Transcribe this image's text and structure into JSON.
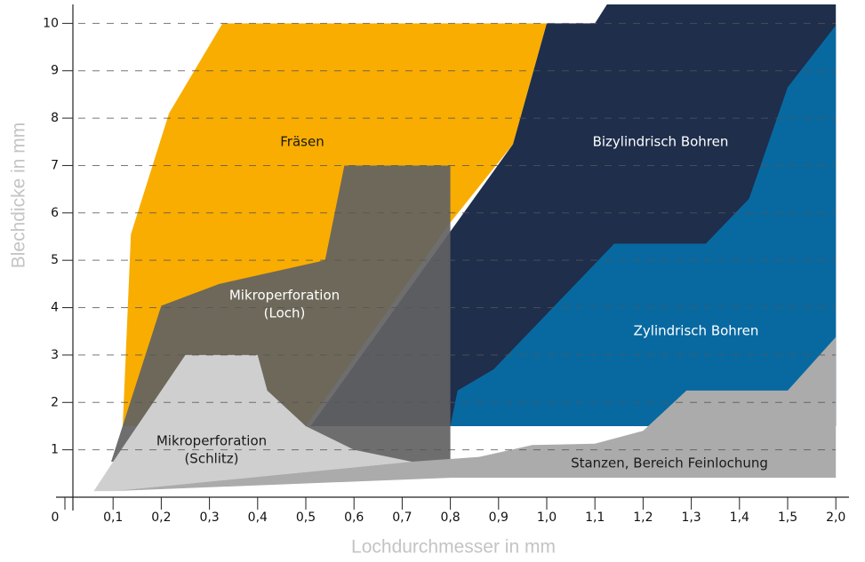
{
  "chart_data": {
    "type": "region",
    "x_label": "Lochdurchmesser in mm",
    "y_label": "Blechdicke in mm",
    "xlim": [
      0,
      2.0
    ],
    "ylim": [
      0,
      10.4
    ],
    "xticks": [
      0,
      {
        "value": 0.1,
        "label": "0,1"
      },
      {
        "value": 0.2,
        "label": "0,2"
      },
      {
        "value": 0.3,
        "label": "0,3"
      },
      {
        "value": 0.4,
        "label": "0,4"
      },
      {
        "value": 0.5,
        "label": "0,5"
      },
      {
        "value": 0.6,
        "label": "0,6"
      },
      {
        "value": 0.7,
        "label": "0,7"
      },
      {
        "value": 0.8,
        "label": "0,8"
      },
      {
        "value": 0.9,
        "label": "0,9"
      },
      {
        "value": 1.0,
        "label": "1,0"
      },
      {
        "value": 1.1,
        "label": "1,1"
      },
      {
        "value": 1.2,
        "label": "1,2"
      },
      {
        "value": 1.3,
        "label": "1,3"
      },
      {
        "value": 1.4,
        "label": "1,4"
      },
      {
        "value": 1.5,
        "label": "1,5"
      },
      {
        "value": 2.0,
        "label": "2,0"
      }
    ],
    "yticks": [
      1,
      2,
      3,
      4,
      5,
      6,
      7,
      8,
      9,
      10
    ],
    "grid": true,
    "series": [
      {
        "label": [
          "Fräsen"
        ],
        "color": "#f9ad00",
        "label_color": "#1a1a1a",
        "x": [
          0.12,
          0.137,
          0.216,
          0.327,
          1.0,
          0.93,
          0.8,
          0.5
        ],
        "y": [
          1.5,
          5.55,
          8.1,
          10,
          10,
          7.45,
          5.8,
          1.5
        ]
      },
      {
        "label": [
          "Bizylindrisch Bohren"
        ],
        "color": "#1e2e4b",
        "label_color": "#ffffff",
        "x": [
          0.51,
          0.93,
          1.0,
          1.1,
          1.125,
          2.0,
          2.0
        ],
        "y": [
          1.5,
          7.45,
          10,
          10,
          10.4,
          10.4,
          1.5
        ]
      },
      {
        "label": [
          "Zylindrisch Bohren"
        ],
        "color": "#0869a1",
        "label_color": "#ffffff",
        "x": [
          0.8,
          0.815,
          0.89,
          1.14,
          1.33,
          1.42,
          1.5,
          2.0,
          2.0
        ],
        "y": [
          1.5,
          2.25,
          2.7,
          5.35,
          5.35,
          6.3,
          8.65,
          9.96,
          1.5
        ]
      },
      {
        "label": [
          "Mikroperforation",
          "(Loch)"
        ],
        "color": "#626262",
        "label_color": "#ffffff",
        "x": [
          0.096,
          0.2,
          0.32,
          0.54,
          0.58,
          0.8,
          0.8
        ],
        "y": [
          0.75,
          4.04,
          4.5,
          5.0,
          7.0,
          7.0,
          0.75
        ]
      },
      {
        "label": [
          "Mikroperforation",
          "(Schlitz)"
        ],
        "color": "#cfcfcf",
        "label_color": "#1a1a1a",
        "x": [
          0.06,
          0.1,
          0.25,
          0.4,
          0.42,
          0.5,
          0.6,
          0.72,
          0.1
        ],
        "y": [
          0.13,
          0.75,
          3.0,
          3.0,
          2.25,
          1.5,
          1.0,
          0.75,
          0.13
        ]
      },
      {
        "label": [
          "Stanzen, Bereich Feinlochung"
        ],
        "color": "#ababab",
        "label_color": "#1a1a1a",
        "x": [
          0.1,
          0.72,
          0.86,
          0.97,
          1.1,
          1.2,
          1.29,
          1.5,
          2.0,
          2.0,
          0.8
        ],
        "y": [
          0.13,
          0.75,
          0.85,
          1.1,
          1.13,
          1.4,
          2.25,
          2.25,
          3.38,
          0.41,
          0.41
        ]
      }
    ]
  }
}
